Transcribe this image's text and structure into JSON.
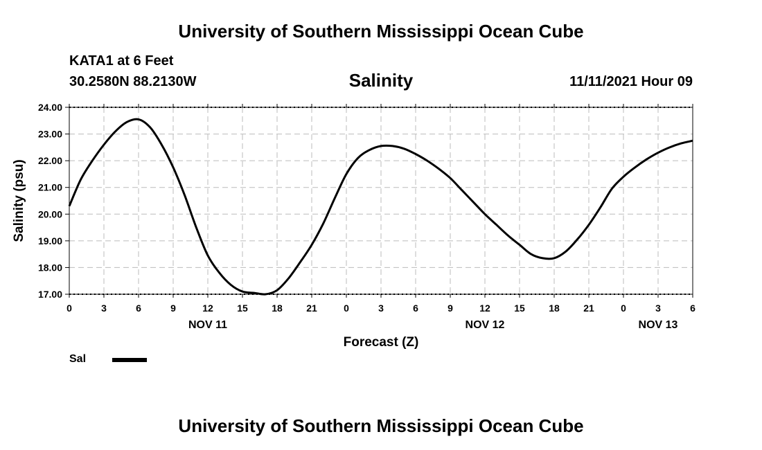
{
  "header": {
    "title_top": "University of Southern Mississippi Ocean Cube",
    "station": "KATA1 at 6 Feet",
    "coords": "30.2580N  88.2130W",
    "run_time": "11/11/2021 Hour 09",
    "title_bottom": "University of Southern Mississippi Ocean Cube"
  },
  "legend": {
    "label": "Sal"
  },
  "chart_data": {
    "type": "line",
    "title": "Salinity",
    "xlabel": "Forecast (Z)",
    "ylabel": "Salinity (psu)",
    "ylim": [
      17,
      24
    ],
    "xlim": [
      0,
      54
    ],
    "grid": true,
    "y_ticks": [
      "17.00",
      "18.00",
      "19.00",
      "20.00",
      "21.00",
      "22.00",
      "23.00",
      "24.00"
    ],
    "x_ticks": [
      "0",
      "3",
      "6",
      "9",
      "12",
      "15",
      "18",
      "21",
      "0",
      "3",
      "6",
      "9",
      "12",
      "15",
      "18",
      "21",
      "0",
      "3",
      "6"
    ],
    "date_labels": [
      {
        "text": "NOV 11",
        "hour": 12
      },
      {
        "text": "NOV 12",
        "hour": 36
      },
      {
        "text": "NOV 13",
        "hour": 51
      }
    ],
    "series": [
      {
        "name": "Sal",
        "color": "#000000",
        "x": [
          0,
          1,
          2,
          3,
          4,
          5,
          6,
          7,
          8,
          9,
          10,
          11,
          12,
          13,
          14,
          15,
          16,
          17,
          18,
          19,
          20,
          21,
          22,
          23,
          24,
          25,
          26,
          27,
          28,
          29,
          30,
          31,
          32,
          33,
          34,
          35,
          36,
          37,
          38,
          39,
          40,
          41,
          42,
          43,
          44,
          45,
          46,
          47,
          48,
          49,
          50,
          51,
          52,
          53,
          54
        ],
        "values": [
          20.3,
          21.3,
          22.0,
          22.6,
          23.1,
          23.45,
          23.55,
          23.25,
          22.6,
          21.75,
          20.7,
          19.5,
          18.45,
          17.8,
          17.35,
          17.1,
          17.05,
          17.0,
          17.15,
          17.6,
          18.2,
          18.85,
          19.65,
          20.6,
          21.5,
          22.1,
          22.4,
          22.55,
          22.55,
          22.45,
          22.25,
          22.0,
          21.7,
          21.35,
          20.9,
          20.45,
          20.0,
          19.6,
          19.2,
          18.85,
          18.5,
          18.35,
          18.35,
          18.6,
          19.05,
          19.6,
          20.25,
          20.95,
          21.4,
          21.75,
          22.05,
          22.3,
          22.5,
          22.65,
          22.75
        ]
      }
    ]
  }
}
